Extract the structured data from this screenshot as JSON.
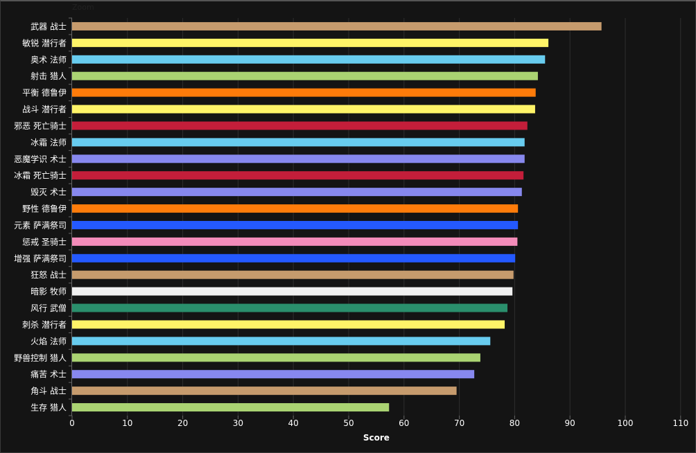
{
  "chart_data": {
    "type": "bar",
    "orientation": "horizontal",
    "title": "",
    "zoom_label": "Zoom",
    "xlabel": "Score",
    "ylabel": "",
    "xlim": [
      0,
      112
    ],
    "xticks": [
      0,
      10,
      20,
      30,
      40,
      50,
      60,
      70,
      80,
      90,
      100,
      110
    ],
    "grid": true,
    "categories": [
      "武器 战士",
      "敏锐 潜行者",
      "奥术 法师",
      "射击 猎人",
      "平衡 德鲁伊",
      "战斗 潜行者",
      "邪恶 死亡骑士",
      "冰霜 法师",
      "恶魔学识 术士",
      "冰霜 死亡骑士",
      "毁灭 术士",
      "野性 德鲁伊",
      "元素 萨满祭司",
      "惩戒 圣骑士",
      "增强 萨满祭司",
      "狂怒 战士",
      "暗影 牧师",
      "风行 武僧",
      "刺杀 潜行者",
      "火焰 法师",
      "野兽控制 猎人",
      "痛苦 术士",
      "角斗 战士",
      "生存 猎人"
    ],
    "values": [
      95.7,
      86.1,
      85.5,
      84.2,
      83.8,
      83.7,
      82.3,
      81.8,
      81.8,
      81.6,
      81.3,
      80.6,
      80.6,
      80.5,
      80.1,
      79.8,
      79.6,
      78.7,
      78.2,
      75.6,
      73.8,
      72.7,
      69.5,
      57.3
    ],
    "colors": [
      "#C69B6D",
      "#FFF468",
      "#68CCEF",
      "#AAD372",
      "#FF7C0A",
      "#FFF468",
      "#C41E3A",
      "#68CCEF",
      "#8788EE",
      "#C41E3A",
      "#8788EE",
      "#FF7C0A",
      "#2459FF",
      "#F48CBA",
      "#2459FF",
      "#C69B6D",
      "#F0F0F0",
      "#2A8F6C",
      "#FFF468",
      "#68CCEF",
      "#AAD372",
      "#8788EE",
      "#C69B6D",
      "#AAD372"
    ]
  }
}
